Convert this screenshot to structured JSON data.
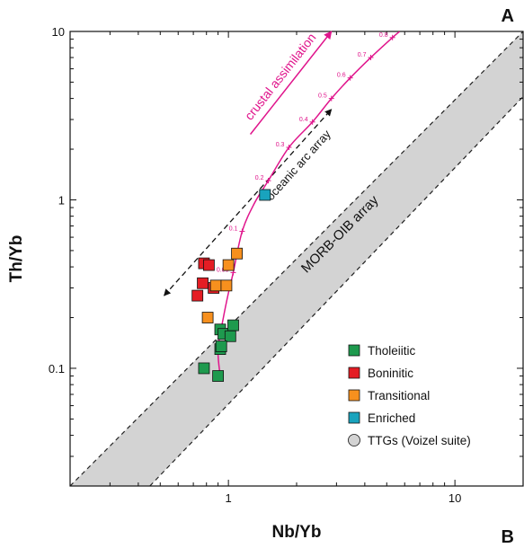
{
  "chart_data": {
    "type": "scatter",
    "title": "",
    "xlabel": "Nb/Yb",
    "ylabel": "Th/Yb",
    "xscale": "log",
    "yscale": "log",
    "xlim": [
      0.2,
      20
    ],
    "ylim": [
      0.02,
      10
    ],
    "x_ticks": [
      {
        "value": 1,
        "label": "1"
      },
      {
        "value": 10,
        "label": "10"
      }
    ],
    "y_ticks": [
      {
        "value": 0.1,
        "label": "0.1"
      },
      {
        "value": 1,
        "label": "1"
      },
      {
        "value": 10,
        "label": "10"
      }
    ],
    "corner_labels": {
      "top_right": "A",
      "bottom_right": "B"
    },
    "series": [
      {
        "name": "Tholeiitic",
        "color": "#1e9a4e",
        "marker": "square",
        "points": [
          [
            0.92,
            0.17
          ],
          [
            0.95,
            0.16
          ],
          [
            1.05,
            0.18
          ],
          [
            1.02,
            0.155
          ],
          [
            0.92,
            0.13
          ],
          [
            0.93,
            0.135
          ],
          [
            0.78,
            0.1
          ],
          [
            0.9,
            0.09
          ]
        ]
      },
      {
        "name": "Boninitic",
        "color": "#e41d24",
        "marker": "square",
        "points": [
          [
            0.78,
            0.42
          ],
          [
            0.82,
            0.41
          ],
          [
            0.77,
            0.32
          ],
          [
            0.73,
            0.27
          ],
          [
            0.86,
            0.3
          ]
        ]
      },
      {
        "name": "Transitional",
        "color": "#f7901e",
        "marker": "square",
        "points": [
          [
            1.09,
            0.48
          ],
          [
            1.0,
            0.41
          ],
          [
            0.88,
            0.31
          ],
          [
            0.98,
            0.31
          ],
          [
            0.81,
            0.2
          ]
        ]
      },
      {
        "name": "Enriched",
        "color": "#19a3bd",
        "marker": "square",
        "points": [
          [
            1.45,
            1.07
          ]
        ]
      },
      {
        "name": "TTGs (Voizel suite)",
        "color": "#d3d3d3",
        "marker": "circle",
        "points": []
      }
    ],
    "morb_oib_array": {
      "label": "MORB-OIB array",
      "upper_boundary": [
        [
          0.2,
          0.02
        ],
        [
          20,
          10
        ]
      ],
      "lower_boundary": [
        [
          0.45,
          0.02
        ],
        [
          20,
          4.1
        ]
      ],
      "fill": "#d3d3d3"
    },
    "mixing_curve": {
      "color": "#e0158c",
      "points": [
        [
          0.92,
          0.09
        ],
        [
          0.9,
          0.13
        ],
        [
          0.95,
          0.2
        ],
        [
          1.0,
          0.28
        ],
        [
          1.05,
          0.37
        ],
        [
          1.15,
          0.65
        ],
        [
          1.3,
          0.95
        ],
        [
          1.5,
          1.3
        ],
        [
          1.85,
          2.05
        ],
        [
          2.35,
          2.9
        ],
        [
          2.85,
          4.0
        ],
        [
          3.45,
          5.3
        ],
        [
          4.25,
          7.0
        ],
        [
          5.3,
          9.2
        ],
        [
          5.7,
          10
        ]
      ],
      "marks": [
        {
          "label": "0.05",
          "x": 1.05,
          "y": 0.37
        },
        {
          "label": "0.1",
          "x": 1.15,
          "y": 0.65
        },
        {
          "label": "0.2",
          "x": 1.5,
          "y": 1.3
        },
        {
          "label": "0.3",
          "x": 1.85,
          "y": 2.05
        },
        {
          "label": "0.4",
          "x": 2.35,
          "y": 2.9
        },
        {
          "label": "0.5",
          "x": 2.85,
          "y": 4.0
        },
        {
          "label": "0.6",
          "x": 3.45,
          "y": 5.3
        },
        {
          "label": "0.7",
          "x": 4.25,
          "y": 7.0
        },
        {
          "label": "0.8",
          "x": 5.3,
          "y": 9.2
        }
      ]
    },
    "annotations": {
      "crustal_assimilation": {
        "text": "crustal assimilation",
        "color": "#e0158c",
        "arrow_from": [
          1.25,
          2.45
        ],
        "arrow_to": [
          2.85,
          10
        ]
      },
      "oceanic_arc_array": {
        "text": "oceanic arc array",
        "arrow_from": [
          0.52,
          0.27
        ],
        "arrow_to": [
          2.85,
          3.45
        ]
      }
    }
  }
}
